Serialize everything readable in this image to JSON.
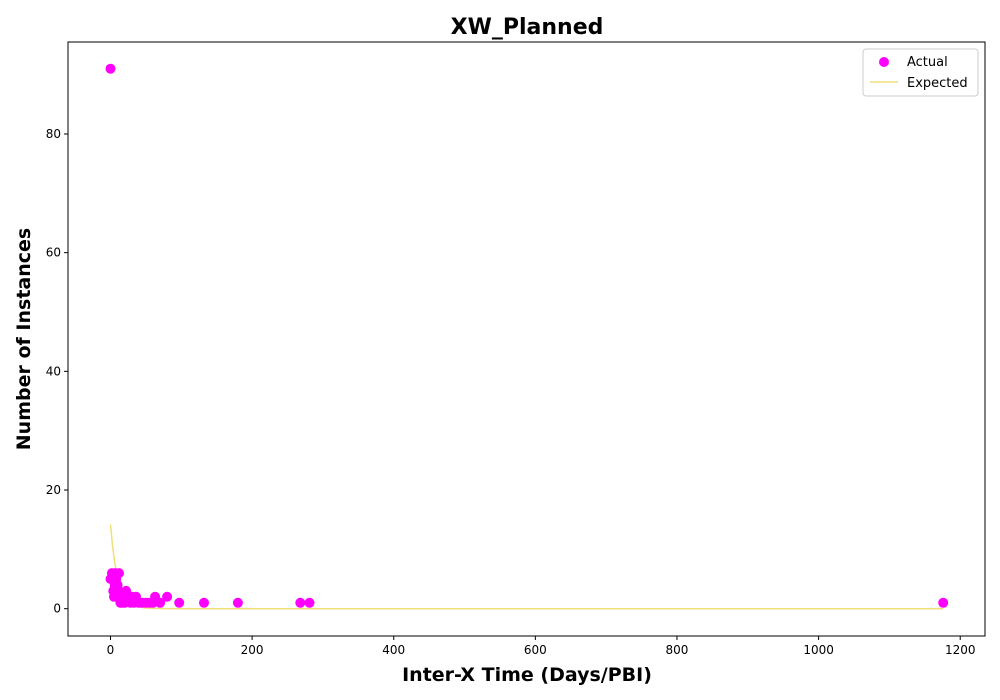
{
  "chart_data": {
    "type": "scatter",
    "title": "XW_Planned",
    "xlabel": "Inter-X Time (Days/PBI)",
    "ylabel": "Number of Instances",
    "xlim": [
      -60,
      1235
    ],
    "ylim": [
      -4.6,
      95.5
    ],
    "xticks": [
      0,
      200,
      400,
      600,
      800,
      1000,
      1200
    ],
    "yticks": [
      0,
      20,
      40,
      60,
      80
    ],
    "grid": false,
    "legend_placement": "top-right",
    "series": [
      {
        "name": "Actual",
        "kind": "scatter",
        "color": "#ff00ff",
        "points": [
          [
            0,
            91
          ],
          [
            0,
            5
          ],
          [
            2,
            6
          ],
          [
            3,
            5
          ],
          [
            4,
            3
          ],
          [
            5,
            2
          ],
          [
            6,
            4
          ],
          [
            7,
            6
          ],
          [
            8,
            5
          ],
          [
            9,
            3
          ],
          [
            10,
            4
          ],
          [
            11,
            3
          ],
          [
            12,
            6
          ],
          [
            13,
            2
          ],
          [
            14,
            1
          ],
          [
            15,
            2
          ],
          [
            16,
            1
          ],
          [
            18,
            2
          ],
          [
            20,
            1
          ],
          [
            22,
            3
          ],
          [
            25,
            2
          ],
          [
            28,
            1
          ],
          [
            30,
            2
          ],
          [
            33,
            1
          ],
          [
            36,
            2
          ],
          [
            40,
            1
          ],
          [
            45,
            1
          ],
          [
            50,
            1
          ],
          [
            55,
            1
          ],
          [
            60,
            1
          ],
          [
            63,
            2
          ],
          [
            70,
            1
          ],
          [
            80,
            2
          ],
          [
            97,
            1
          ],
          [
            132,
            1
          ],
          [
            180,
            1
          ],
          [
            268,
            1
          ],
          [
            281,
            1
          ],
          [
            1176,
            1
          ]
        ]
      },
      {
        "name": "Expected",
        "kind": "line",
        "color": "#f0e07a",
        "x": [
          0,
          3,
          6,
          9,
          12,
          15,
          18,
          21,
          25,
          30,
          35,
          40,
          50,
          60,
          80,
          100,
          200,
          400,
          600,
          800,
          1000,
          1176
        ],
        "y": [
          14.2,
          10.5,
          7.8,
          5.8,
          4.3,
          3.2,
          2.4,
          1.8,
          1.2,
          0.8,
          0.5,
          0.3,
          0.12,
          0.05,
          0.01,
          0,
          0,
          0,
          0,
          0,
          0,
          0
        ]
      }
    ]
  }
}
